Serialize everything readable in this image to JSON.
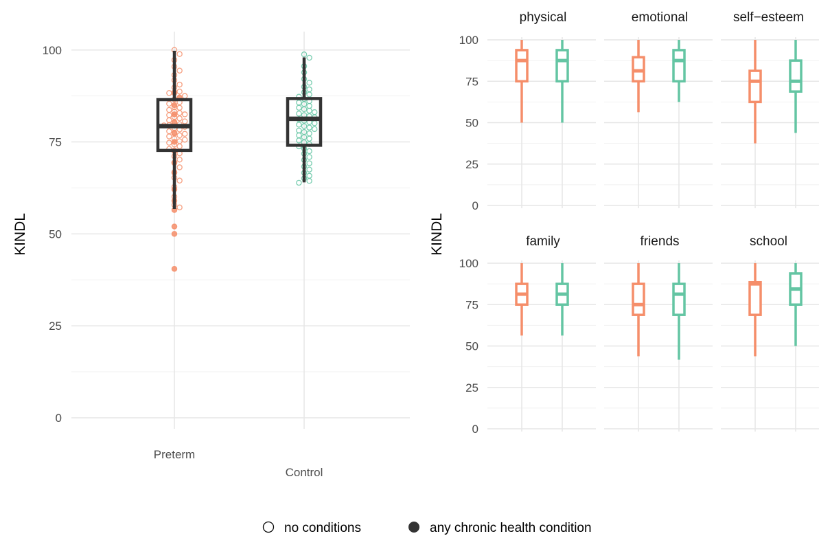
{
  "colors": {
    "preterm": "#F58E6A",
    "control": "#64C5A3",
    "grid_major": "#E6E6E6",
    "grid_minor": "#F1F1F1",
    "box": "#333333"
  },
  "chart_data": [
    {
      "type": "boxplot",
      "panel": "total",
      "ylabel": "KINDL",
      "xlabel": "",
      "ylim": [
        -3,
        105
      ],
      "yticks": [
        0,
        25,
        50,
        75,
        100
      ],
      "categories": [
        "Preterm",
        "Control"
      ],
      "boxes": [
        {
          "group": "Preterm",
          "min": 56.8,
          "q1": 72.7,
          "median": 79.3,
          "q3": 86.5,
          "max": 99.8
        },
        {
          "group": "Control",
          "min": 64.0,
          "q1": 74.1,
          "median": 81.3,
          "q3": 86.8,
          "max": 98.0
        }
      ],
      "points": {
        "Preterm": {
          "no_conditions": [
            100,
            98.9,
            97.3,
            95.5,
            94.4,
            93.2,
            91.8,
            90.6,
            89.8,
            88.7,
            88.5,
            88.3,
            87.5,
            86.6,
            85.8,
            85.4,
            84.5,
            84.3,
            83.7,
            83.2,
            82.9,
            82.5,
            82.3,
            81.8,
            81.4,
            80.9,
            80.6,
            80.2,
            79.8,
            79.6,
            79.5,
            79.1,
            78.8,
            78.4,
            77.9,
            77.5,
            77.2,
            76.8,
            76.5,
            75.9,
            75.6,
            75.2,
            74.8,
            74.3,
            73.8,
            73.1,
            72.7,
            71.9,
            71.1,
            70.2,
            69.3,
            68.1,
            66.8,
            65.3,
            64.5,
            62.8,
            60.1,
            57.9,
            57.2
          ],
          "chronic_condition": [
            88.3,
            87.1,
            85.0,
            82.5,
            80.4,
            77.3,
            75.0,
            72.5,
            69.4,
            66.6,
            62.1,
            59.0,
            56.5,
            52.0,
            50.0,
            40.5
          ]
        },
        "Control": {
          "no_conditions": [
            98.8,
            97.9,
            95.6,
            93.9,
            92.1,
            91.1,
            90.0,
            89.3,
            88.5,
            87.9,
            87.3,
            86.7,
            86.1,
            85.7,
            85.3,
            84.8,
            84.3,
            83.9,
            83.5,
            83.1,
            82.7,
            82.3,
            82.0,
            81.7,
            81.2,
            80.8,
            80.4,
            80.1,
            79.7,
            79.3,
            78.9,
            78.5,
            78.1,
            77.7,
            77.3,
            76.8,
            76.3,
            75.9,
            75.4,
            74.9,
            74.4,
            73.8,
            73.2,
            72.5,
            71.8,
            70.9,
            70.1,
            69.2,
            68.3,
            67.5,
            66.6,
            65.8,
            65.1,
            64.4,
            63.9
          ],
          "chronic_condition": []
        }
      }
    },
    {
      "type": "boxplot",
      "panel": "subscales",
      "ylabel": "KINDL",
      "ylim": [
        -3,
        105
      ],
      "yticks": [
        0,
        25,
        50,
        75,
        100
      ],
      "facets": [
        {
          "label": "physical",
          "Preterm": {
            "min": 50,
            "q1": 75,
            "median": 87.5,
            "q3": 93.8,
            "max": 100
          },
          "Control": {
            "min": 50,
            "q1": 75,
            "median": 87.5,
            "q3": 93.8,
            "max": 100
          }
        },
        {
          "label": "emotional",
          "Preterm": {
            "min": 56.3,
            "q1": 75,
            "median": 81.3,
            "q3": 89.5,
            "max": 100
          },
          "Control": {
            "min": 62.5,
            "q1": 75,
            "median": 87.5,
            "q3": 93.8,
            "max": 100
          }
        },
        {
          "label": "self−esteem",
          "Preterm": {
            "min": 37.5,
            "q1": 62.5,
            "median": 75,
            "q3": 81.3,
            "max": 100
          },
          "Control": {
            "min": 43.8,
            "q1": 68.8,
            "median": 75,
            "q3": 87.5,
            "max": 100
          }
        },
        {
          "label": "family",
          "Preterm": {
            "min": 56.3,
            "q1": 75,
            "median": 81.3,
            "q3": 87.5,
            "max": 100
          },
          "Control": {
            "min": 56.3,
            "q1": 75,
            "median": 81.3,
            "q3": 87.5,
            "max": 100
          }
        },
        {
          "label": "friends",
          "Preterm": {
            "min": 43.8,
            "q1": 68.8,
            "median": 75,
            "q3": 87.5,
            "max": 100
          },
          "Control": {
            "min": 41.7,
            "q1": 68.8,
            "median": 81.3,
            "q3": 87.5,
            "max": 100
          }
        },
        {
          "label": "school",
          "Preterm": {
            "min": 43.8,
            "q1": 68.8,
            "median": 87.5,
            "q3": 88.5,
            "max": 100
          },
          "Control": {
            "min": 50,
            "q1": 75,
            "median": 84.4,
            "q3": 93.8,
            "max": 100
          }
        }
      ]
    }
  ],
  "legend": {
    "placement": "bottom",
    "items": [
      {
        "label": "no conditions",
        "marker": "open-circle"
      },
      {
        "label": "any chronic health condition",
        "marker": "filled-circle"
      }
    ]
  }
}
